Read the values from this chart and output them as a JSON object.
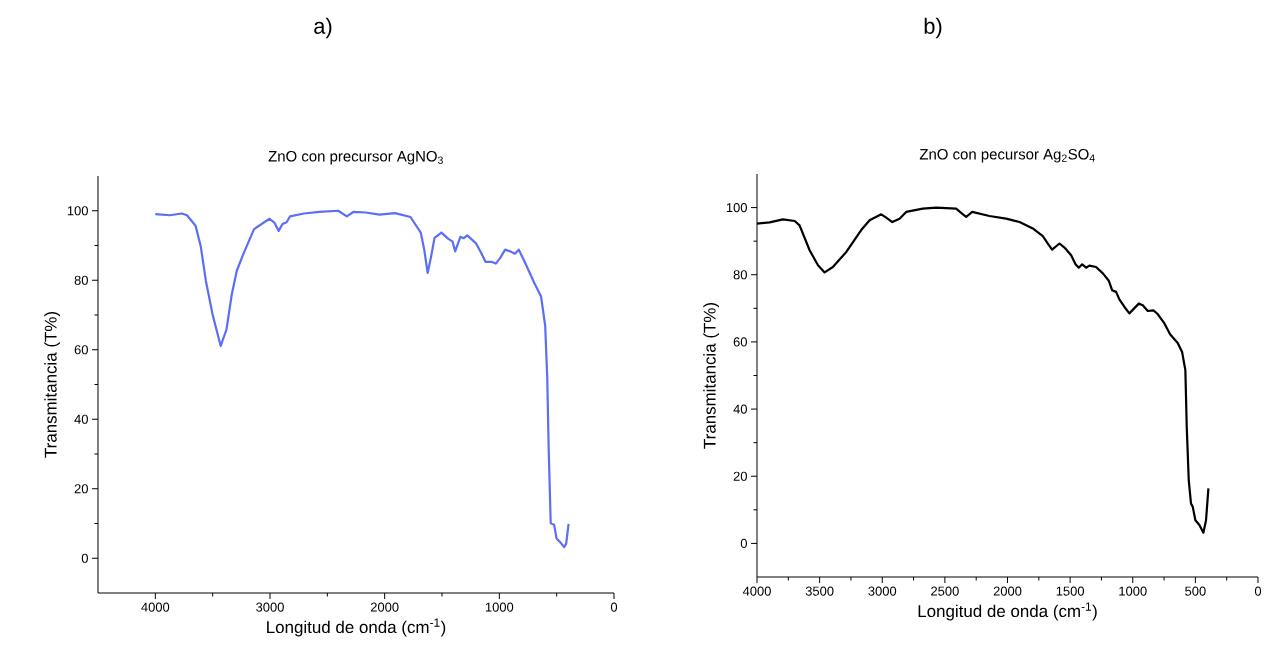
{
  "chart_data": [
    {
      "type": "line",
      "title": "ZnO con precursor AgNO$_{3}$",
      "xlabel": "Longitud de onda (cm$^{-1}$)",
      "ylabel": "Transmitancia (T%)",
      "annotations": [
        "a)"
      ],
      "xlim": [
        4500,
        0
      ],
      "ylim": [
        -10,
        110
      ],
      "xticks": [
        4000,
        3000,
        2000,
        1000,
        0
      ],
      "yticks": [
        0,
        20,
        40,
        60,
        80,
        100
      ],
      "series": [
        {
          "color": "#5b6ef5",
          "x": [
            4000,
            3874,
            3769,
            3724,
            3649,
            3604,
            3559,
            3499,
            3430,
            3379,
            3334,
            3289,
            3229,
            3139,
            3004,
            2960,
            2924,
            2891,
            2855,
            2825,
            2705,
            2570,
            2405,
            2330,
            2270,
            2165,
            2045,
            1910,
            1775,
            1685,
            1655,
            1625,
            1595,
            1565,
            1505,
            1445,
            1409,
            1385,
            1340,
            1310,
            1280,
            1205,
            1160,
            1121,
            1070,
            1031,
            995,
            949,
            904,
            865,
            830,
            779,
            696,
            636,
            600,
            582,
            570,
            552,
            522,
            501,
            471,
            435,
            417,
            396
          ],
          "values": [
            99.0,
            98.7,
            99.2,
            98.7,
            95.7,
            89.8,
            79.8,
            69.9,
            61.1,
            65.9,
            75.8,
            82.8,
            87.8,
            94.7,
            97.7,
            96.5,
            94.2,
            96.2,
            96.7,
            98.4,
            99.2,
            99.7,
            100,
            98.4,
            99.7,
            99.5,
            98.9,
            99.3,
            98.2,
            93.7,
            88.8,
            82.1,
            86.8,
            92.2,
            93.7,
            91.9,
            91.2,
            88.3,
            92.5,
            92.1,
            92.9,
            90.7,
            88.0,
            85.3,
            85.3,
            84.8,
            86.3,
            88.8,
            88.3,
            87.6,
            88.8,
            85.3,
            79.3,
            75.3,
            66.9,
            51.9,
            32.0,
            10.1,
            9.6,
            5.7,
            4.7,
            3.2,
            4.2,
            9.9
          ]
        }
      ]
    },
    {
      "type": "line",
      "title": "ZnO con pecursor Ag$_{2}$SO$_{4}$",
      "xlabel": "Longitud de onda (cm$^{-1}$)",
      "ylabel": "Transmitancia (T%)",
      "annotations": [
        "b)"
      ],
      "xlim": [
        4000,
        0
      ],
      "ylim": [
        -10,
        110
      ],
      "xticks": [
        4000,
        3500,
        3000,
        2500,
        2000,
        1500,
        1000,
        500,
        0
      ],
      "yticks": [
        0,
        20,
        40,
        60,
        80,
        100
      ],
      "series": [
        {
          "color": "#000000",
          "x": [
            4000,
            3899,
            3793,
            3699,
            3660,
            3580,
            3513,
            3460,
            3394,
            3287,
            3168,
            3101,
            3008,
            2968,
            2920,
            2862,
            2809,
            2676,
            2569,
            2410,
            2370,
            2330,
            2282,
            2144,
            2011,
            1904,
            1798,
            1718,
            1678,
            1644,
            1585,
            1545,
            1492,
            1457,
            1431,
            1404,
            1372,
            1346,
            1293,
            1239,
            1191,
            1165,
            1133,
            1106,
            1066,
            1027,
            952,
            920,
            880,
            835,
            801,
            747,
            702,
            641,
            606,
            580,
            569,
            553,
            535,
            521,
            500,
            468,
            436,
            415,
            396
          ],
          "values": [
            95.2,
            95.6,
            96.5,
            96.0,
            94.7,
            87.3,
            82.8,
            80.7,
            82.3,
            86.8,
            93.3,
            96.2,
            98.0,
            97.0,
            95.7,
            96.7,
            98.7,
            99.7,
            100,
            99.7,
            98.4,
            97.2,
            98.7,
            97.5,
            96.7,
            95.7,
            93.8,
            91.5,
            89.3,
            87.5,
            89.3,
            88.1,
            85.8,
            83.1,
            82.1,
            83.1,
            82.1,
            82.7,
            82.3,
            80.4,
            78.2,
            75.4,
            74.9,
            72.6,
            70.4,
            68.5,
            71.4,
            70.9,
            69.2,
            69.4,
            68.3,
            65.5,
            62.3,
            59.7,
            57.0,
            51.6,
            34.7,
            18.8,
            11.9,
            10.9,
            6.9,
            5.5,
            3.2,
            6.9,
            16.4
          ]
        }
      ]
    }
  ]
}
